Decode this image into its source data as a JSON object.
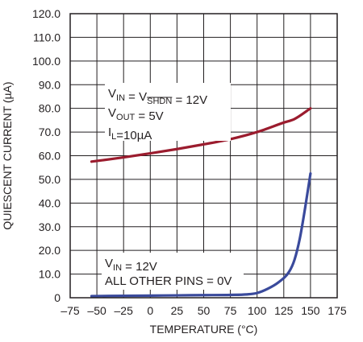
{
  "chart_data": {
    "type": "line",
    "xlabel": "TEMPERATURE (°C)",
    "ylabel": "QUIESCENT CURRENT (µA)",
    "xlim": [
      -75,
      175
    ],
    "ylim": [
      0,
      120
    ],
    "x_ticks": [
      -75,
      -50,
      -25,
      0,
      25,
      50,
      75,
      100,
      125,
      150,
      175
    ],
    "x_tick_labels": [
      "–75",
      "–50",
      "–25",
      "0",
      "25",
      "50",
      "75",
      "100",
      "125",
      "150",
      "175"
    ],
    "y_ticks": [
      0,
      10,
      20,
      30,
      40,
      50,
      60,
      70,
      80,
      90,
      100,
      110,
      120
    ],
    "y_tick_labels": [
      "0",
      "10.0",
      "20.0",
      "30.0",
      "40.0",
      "50.0",
      "60.0",
      "70.0",
      "80.0",
      "90.0",
      "100.0",
      "110.0",
      "120.0"
    ],
    "grid": true,
    "series": [
      {
        "color": "#9b1c2e",
        "x": [
          -55,
          -25,
          0,
          25,
          50,
          75,
          100,
          125,
          135,
          150
        ],
        "y": [
          57.5,
          59.3,
          61,
          62.8,
          64.8,
          67,
          70,
          74,
          75.5,
          80
        ]
      },
      {
        "color": "#3a4a9c",
        "x": [
          -55,
          -25,
          0,
          25,
          50,
          75,
          90,
          100,
          110,
          120,
          130,
          135,
          140,
          145,
          150
        ],
        "y": [
          0.7,
          0.8,
          0.9,
          1.0,
          1.1,
          1.2,
          1.4,
          2.0,
          3.8,
          6.5,
          11,
          16,
          25,
          38,
          52.5
        ]
      }
    ],
    "annotations": [
      {
        "id": "upper-annotation",
        "lines": [
          [
            {
              "t": "V"
            },
            {
              "t": "IN",
              "sub": true
            },
            {
              "t": " = V"
            },
            {
              "t": "SHDN",
              "sub": true,
              "overline": true
            },
            {
              "t": " = 12V"
            }
          ],
          [
            {
              "t": "V"
            },
            {
              "t": "OUT",
              "sub": true
            },
            {
              "t": " = 5V"
            }
          ],
          [
            {
              "t": "I"
            },
            {
              "t": "L",
              "sub": true
            },
            {
              "t": "=10µA"
            }
          ]
        ]
      },
      {
        "id": "lower-annotation",
        "lines": [
          [
            {
              "t": "V"
            },
            {
              "t": "IN",
              "sub": true
            },
            {
              "t": " = 12V"
            }
          ],
          [
            {
              "t": "ALL OTHER PINS = 0V"
            }
          ]
        ]
      }
    ]
  }
}
